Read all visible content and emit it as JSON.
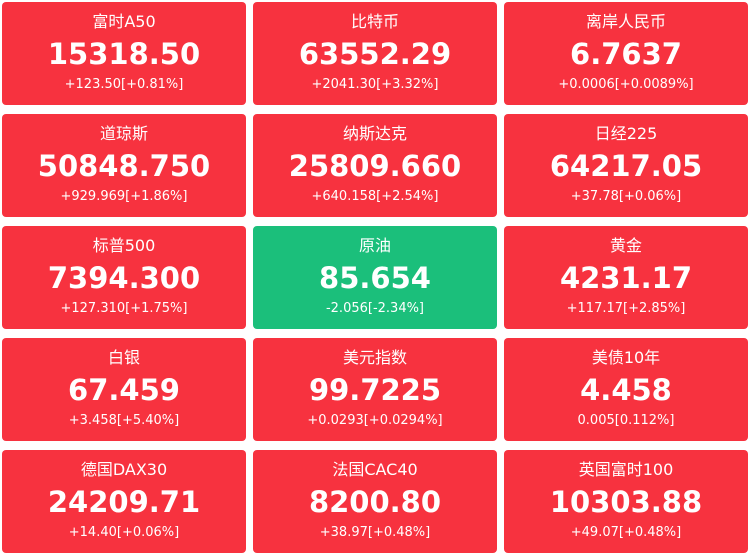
{
  "tiles": [
    {
      "name": "富时A50",
      "price": "15318.50",
      "change": "+123.50[+0.81%]",
      "color": "#f7323f"
    },
    {
      "name": "比特币",
      "price": "63552.29",
      "change": "+2041.30[+3.32%]",
      "color": "#f7323f"
    },
    {
      "name": "离岸人民币",
      "price": "6.7637",
      "change": "+0.0006[+0.0089%]",
      "color": "#f7323f"
    },
    {
      "name": "道琼斯",
      "price": "50848.750",
      "change": "+929.969[+1.86%]",
      "color": "#f7323f"
    },
    {
      "name": "纳斯达克",
      "price": "25809.660",
      "change": "+640.158[+2.54%]",
      "color": "#f7323f"
    },
    {
      "name": "日经225",
      "price": "64217.05",
      "change": "+37.78[+0.06%]",
      "color": "#f7323f"
    },
    {
      "name": "标普500",
      "price": "7394.300",
      "change": "+127.310[+1.75%]",
      "color": "#f7323f"
    },
    {
      "name": "原油",
      "price": "85.654",
      "change": "-2.056[-2.34%]",
      "color": "#1bbf7b"
    },
    {
      "name": "黄金",
      "price": "4231.17",
      "change": "+117.17[+2.85%]",
      "color": "#f7323f"
    },
    {
      "name": "白银",
      "price": "67.459",
      "change": "+3.458[+5.40%]",
      "color": "#f7323f"
    },
    {
      "name": "美元指数",
      "price": "99.7225",
      "change": "+0.0293[+0.0294%]",
      "color": "#f7323f"
    },
    {
      "name": "美债10年",
      "price": "4.458",
      "change": "0.005[0.112%]",
      "color": "#f7323f"
    },
    {
      "name": "德国DAX30",
      "price": "24209.71",
      "change": "+14.40[+0.06%]",
      "color": "#f7323f"
    },
    {
      "name": "法国CAC40",
      "price": "8200.80",
      "change": "+38.97[+0.48%]",
      "color": "#f7323f"
    },
    {
      "name": "英国富时100",
      "price": "10303.88",
      "change": "+49.07[+0.48%]",
      "color": "#f7323f"
    }
  ]
}
